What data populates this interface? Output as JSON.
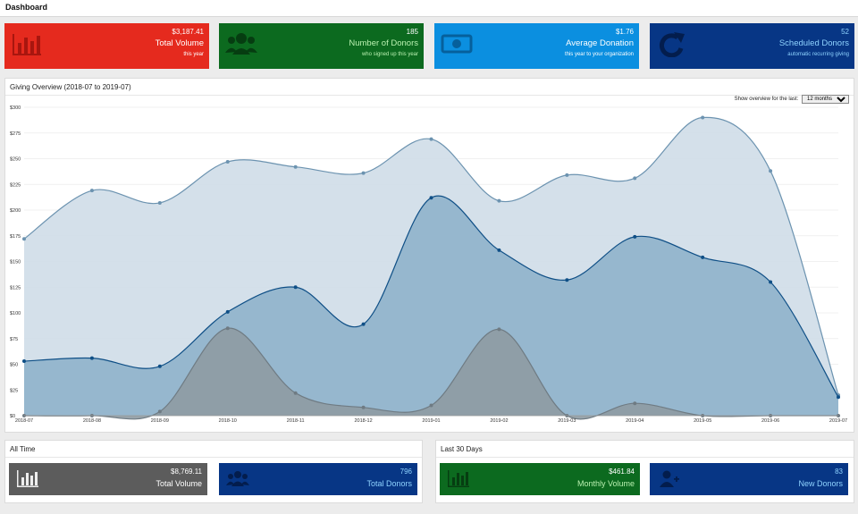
{
  "header": {
    "title": "Dashboard"
  },
  "cards": [
    {
      "value": "$3,187.41",
      "label": "Total Volume",
      "sub": "this year",
      "color": "#e52a1e",
      "icon": "bar-chart-icon"
    },
    {
      "value": "185",
      "label": "Number of Donors",
      "sub": "who signed up this year",
      "color": "#0c6a1f",
      "icon": "group-icon"
    },
    {
      "value": "$1.76",
      "label": "Average Donation",
      "sub": "this year to your organization",
      "color": "#0b8fe0",
      "icon": "money-icon"
    },
    {
      "value": "52",
      "label": "Scheduled Donors",
      "sub": "automatic recurring giving",
      "color": "#073685",
      "icon": "refresh-icon"
    }
  ],
  "overview": {
    "title": "Giving Overview (2018-07 to 2019-07)",
    "range_label": "Show overview for the last:",
    "range_value": "12 months"
  },
  "chart_data": {
    "type": "area",
    "categories": [
      "2018-07",
      "2018-08",
      "2018-09",
      "2018-10",
      "2018-11",
      "2018-12",
      "2019-01",
      "2019-02",
      "2019-03",
      "2019-04",
      "2019-05",
      "2019-06",
      "2019-07"
    ],
    "ylim": [
      0,
      300
    ],
    "y_ticks": [
      "$0",
      "$25",
      "$50",
      "$75",
      "$100",
      "$125",
      "$150",
      "$175",
      "$200",
      "$225",
      "$250",
      "$275",
      "$300"
    ],
    "grid": true,
    "series": [
      {
        "values": [
          172,
          219,
          207,
          247,
          242,
          236,
          269,
          209,
          234,
          231,
          290,
          238,
          20
        ],
        "fill": "#cfdde8",
        "line": "#6c93b0"
      },
      {
        "values": [
          53,
          56,
          48,
          101,
          125,
          89,
          212,
          161,
          132,
          174,
          154,
          130,
          18
        ],
        "fill": "#8fb2cb",
        "line": "#0f4f86"
      },
      {
        "values": [
          0,
          0,
          4,
          85,
          22,
          8,
          10,
          84,
          0,
          12,
          0,
          0,
          0
        ],
        "fill": "#8e9ba3",
        "line": "#6f7b83"
      }
    ]
  },
  "all_time": {
    "title": "All Time",
    "cards": [
      {
        "value": "$8,769.11",
        "label": "Total Volume",
        "color": "#5c5c5c",
        "icon": "bar-chart-icon"
      },
      {
        "value": "796",
        "label": "Total Donors",
        "color": "#073685",
        "icon": "group-icon"
      }
    ]
  },
  "last_30": {
    "title": "Last 30 Days",
    "cards": [
      {
        "value": "$461.84",
        "label": "Monthly Volume",
        "color": "#0c6a1f",
        "icon": "bar-chart-icon"
      },
      {
        "value": "83",
        "label": "New Donors",
        "color": "#073685",
        "icon": "add-user-icon"
      }
    ]
  }
}
